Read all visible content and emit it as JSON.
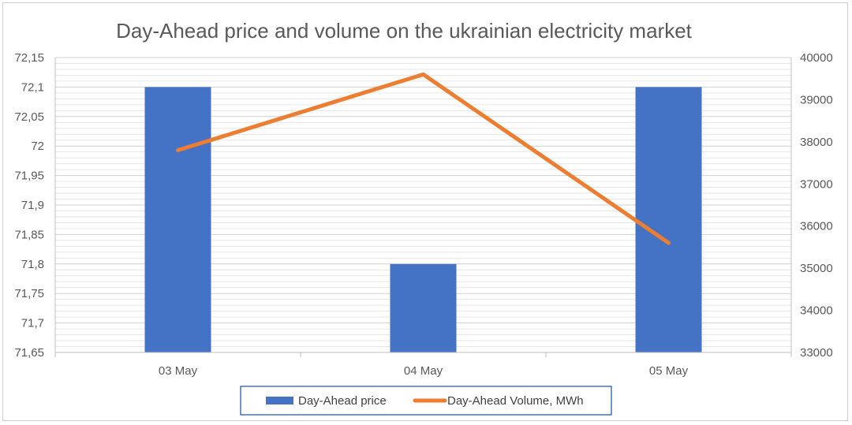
{
  "chart_data": {
    "type": "bar+line",
    "title": "Day-Ahead price and volume on the ukrainian electricity market",
    "categories": [
      "03 May",
      "04 May",
      "05 May"
    ],
    "series": [
      {
        "name": "Day-Ahead price",
        "type": "bar",
        "axis": "left",
        "values": [
          72.1,
          71.8,
          72.1
        ],
        "color": "#4472C4"
      },
      {
        "name": "Day-Ahead Volume, MWh",
        "type": "line",
        "axis": "right",
        "values": [
          37800,
          39600,
          35600
        ],
        "color": "#ED7D31"
      }
    ],
    "y_left": {
      "min": 71.65,
      "max": 72.15,
      "ticks": [
        "72,15",
        "72,1",
        "72,05",
        "72",
        "71,95",
        "71,9",
        "71,85",
        "71,8",
        "71,75",
        "71,7",
        "71,65"
      ]
    },
    "y_right": {
      "min": 33000,
      "max": 40000,
      "ticks": [
        "40000",
        "39000",
        "38000",
        "37000",
        "36000",
        "35000",
        "34000",
        "33000"
      ]
    },
    "grid": true,
    "legend_position": "bottom"
  }
}
